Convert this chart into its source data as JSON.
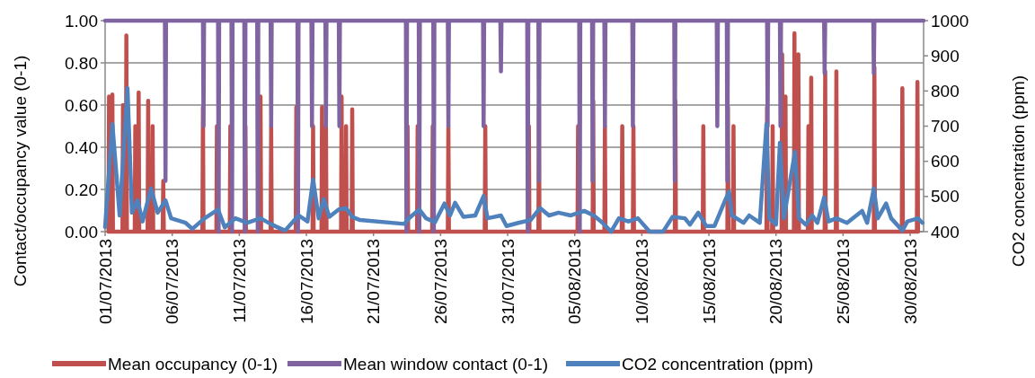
{
  "chart_data": {
    "type": "line",
    "ylabel": "Contact/occupancy value (0-1)",
    "y2label": "CO2 concentration (ppm)",
    "xlim": [
      "2013-07-01",
      "2013-08-31"
    ],
    "xticks": [
      {
        "value": "2013-07-01",
        "label": "01/07/2013"
      },
      {
        "value": "2013-07-06",
        "label": "06/07/2013"
      },
      {
        "value": "2013-07-11",
        "label": "11/07/2013"
      },
      {
        "value": "2013-07-16",
        "label": "16/07/2013"
      },
      {
        "value": "2013-07-21",
        "label": "21/07/2013"
      },
      {
        "value": "2013-07-26",
        "label": "26/07/2013"
      },
      {
        "value": "2013-07-31",
        "label": "31/07/2013"
      },
      {
        "value": "2013-08-05",
        "label": "05/08/2013"
      },
      {
        "value": "2013-08-10",
        "label": "10/08/2013"
      },
      {
        "value": "2013-08-15",
        "label": "15/08/2013"
      },
      {
        "value": "2013-08-20",
        "label": "20/08/2013"
      },
      {
        "value": "2013-08-25",
        "label": "25/08/2013"
      },
      {
        "value": "2013-08-30",
        "label": "30/08/2013"
      }
    ],
    "ylim": [
      0,
      1
    ],
    "yticks": [
      {
        "value": 0,
        "label": "0.00"
      },
      {
        "value": 0.2,
        "label": "0.20"
      },
      {
        "value": 0.4,
        "label": "0.40"
      },
      {
        "value": 0.6,
        "label": "0.60"
      },
      {
        "value": 0.8,
        "label": "0.80"
      },
      {
        "value": 1,
        "label": "1.00"
      }
    ],
    "y2lim": [
      400,
      1000
    ],
    "y2ticks": [
      400,
      500,
      600,
      700,
      800,
      900,
      1000
    ],
    "grid": "y",
    "legend": "bottom",
    "line_style": "solid",
    "marker": "none",
    "series": [
      {
        "name": "Mean occupancy (0-1)",
        "color": "#c0504d",
        "x": [
          "2013-07-01T06:00",
          "2013-07-01T07:00",
          "2013-07-01T08:00",
          "2013-07-01T12:00",
          "2013-07-01T13:00",
          "2013-07-01T14:00",
          "2013-07-02T07:00",
          "2013-07-02T08:00",
          "2013-07-02T09:00",
          "2013-07-02T13:00",
          "2013-07-02T14:00",
          "2013-07-02T15:00",
          "2013-07-03T05:00",
          "2013-07-03T06:00",
          "2013-07-03T07:00",
          "2013-07-03T11:00",
          "2013-07-03T12:00",
          "2013-07-03T13:00",
          "2013-07-04T04:00",
          "2013-07-04T05:00",
          "2013-07-04T06:00",
          "2013-07-04T12:00",
          "2013-07-04T13:00",
          "2013-07-04T14:00",
          "2013-07-05T07:00",
          "2013-07-05T08:00",
          "2013-07-05T09:00",
          "2013-07-08T06:00",
          "2013-07-08T07:00",
          "2013-07-08T08:00",
          "2013-07-09T07:00",
          "2013-07-09T08:00",
          "2013-07-09T09:00",
          "2013-07-10T07:00",
          "2013-07-10T08:00",
          "2013-07-10T09:00",
          "2013-07-11T10:00",
          "2013-07-11T11:00",
          "2013-07-11T12:00",
          "2013-07-12T13:00",
          "2013-07-12T14:00",
          "2013-07-12T15:00",
          "2013-07-13T08:00",
          "2013-07-13T09:00",
          "2013-07-13T10:00",
          "2013-07-15T05:00",
          "2013-07-15T06:00",
          "2013-07-15T07:00",
          "2013-07-16T11:00",
          "2013-07-16T12:00",
          "2013-07-16T13:00",
          "2013-07-17T03:00",
          "2013-07-17T04:00",
          "2013-07-17T05:00",
          "2013-07-17T10:00",
          "2013-07-17T11:00",
          "2013-07-17T12:00",
          "2013-07-18T14:00",
          "2013-07-18T15:00",
          "2013-07-18T16:00",
          "2013-07-18T22:00",
          "2013-07-18T23:00",
          "2013-07-19T00:00",
          "2013-07-19T09:00",
          "2013-07-19T10:00",
          "2013-07-19T11:00",
          "2013-07-23T12:00",
          "2013-07-23T13:00",
          "2013-07-23T14:00",
          "2013-07-24T06:00",
          "2013-07-24T07:00",
          "2013-07-24T08:00",
          "2013-07-25T09:00",
          "2013-07-25T10:00",
          "2013-07-25T11:00",
          "2013-07-26T13:00",
          "2013-07-26T14:00",
          "2013-07-26T15:00",
          "2013-07-29T07:00",
          "2013-07-29T08:00",
          "2013-07-29T09:00",
          "2013-08-01T13:00",
          "2013-08-01T14:00",
          "2013-08-01T15:00",
          "2013-08-02T07:00",
          "2013-08-02T08:00",
          "2013-08-02T09:00",
          "2013-08-05T05:00",
          "2013-08-05T06:00",
          "2013-08-05T07:00",
          "2013-08-06T08:00",
          "2013-08-06T09:00",
          "2013-08-06T10:00",
          "2013-08-07T05:00",
          "2013-08-07T06:00",
          "2013-08-07T07:00",
          "2013-08-08T12:00",
          "2013-08-08T13:00",
          "2013-08-08T14:00",
          "2013-08-09T08:00",
          "2013-08-09T09:00",
          "2013-08-09T10:00",
          "2013-08-12T11:00",
          "2013-08-12T12:00",
          "2013-08-12T13:00",
          "2013-08-14T13:00",
          "2013-08-14T14:00",
          "2013-08-14T15:00",
          "2013-08-16T09:00",
          "2013-08-16T10:00",
          "2013-08-16T11:00",
          "2013-08-16T19:00",
          "2013-08-16T20:00",
          "2013-08-16T21:00",
          "2013-08-19T07:00",
          "2013-08-19T08:00",
          "2013-08-19T09:00",
          "2013-08-19T17:00",
          "2013-08-19T18:00",
          "2013-08-19T19:00",
          "2013-08-20T10:00",
          "2013-08-20T11:00",
          "2013-08-20T12:00",
          "2013-08-20T16:00",
          "2013-08-20T17:00",
          "2013-08-20T18:00",
          "2013-08-21T08:00",
          "2013-08-21T09:00",
          "2013-08-21T10:00",
          "2013-08-21T15:00",
          "2013-08-21T16:00",
          "2013-08-21T17:00",
          "2013-08-22T09:00",
          "2013-08-22T10:00",
          "2013-08-22T11:00",
          "2013-08-22T14:00",
          "2013-08-22T15:00",
          "2013-08-22T16:00",
          "2013-08-23T15:00",
          "2013-08-23T16:00",
          "2013-08-23T17:00",
          "2013-08-24T11:00",
          "2013-08-24T12:00",
          "2013-08-24T13:00",
          "2013-08-27T07:00",
          "2013-08-27T08:00",
          "2013-08-27T09:00",
          "2013-08-29T09:00",
          "2013-08-29T10:00",
          "2013-08-29T11:00",
          "2013-08-30T12:00",
          "2013-08-30T13:00",
          "2013-08-30T14:00"
        ],
        "values": [
          0,
          0.64,
          0,
          0,
          0.65,
          0,
          0,
          0.6,
          0,
          0,
          0.93,
          0,
          0,
          0.5,
          0,
          0,
          0.66,
          0,
          0,
          0.62,
          0,
          0,
          0.5,
          0,
          0,
          0.24,
          0,
          0,
          0.59,
          0,
          0,
          0.5,
          0,
          0,
          0.5,
          0,
          0,
          0.5,
          0,
          0,
          0.64,
          0,
          0,
          0.5,
          0,
          0,
          0.59,
          0,
          0,
          0.5,
          0,
          0,
          0.59,
          0,
          0,
          0.5,
          0,
          0,
          0.64,
          0,
          0,
          0.5,
          0,
          0,
          0.58,
          0,
          0,
          0.5,
          0,
          0,
          0.5,
          0,
          0,
          0.5,
          0,
          0,
          0.5,
          0,
          0,
          0.5,
          0,
          0,
          0.5,
          0,
          0,
          0.59,
          0,
          0,
          0.5,
          0,
          0,
          0.62,
          0,
          0,
          0.5,
          0,
          0,
          0.5,
          0,
          0,
          0.5,
          0,
          0,
          0.62,
          0,
          0,
          0.5,
          0,
          0,
          0.59,
          0,
          0,
          0.5,
          0,
          0,
          0.59,
          0,
          0,
          0.5,
          0,
          0,
          0.84,
          0,
          0,
          0.64,
          0,
          0,
          0.94,
          0,
          0,
          0.84,
          0,
          0,
          0.5,
          0,
          0,
          0.73,
          0,
          0,
          0.76,
          0,
          0,
          0.76,
          0,
          0,
          0.78,
          0,
          0,
          0.68,
          0,
          0,
          0.71,
          0
        ]
      },
      {
        "name": "Mean window contact (0-1)",
        "color": "#8064a2",
        "x": [
          "2013-07-01T00:00",
          "2013-07-05T11:00",
          "2013-07-05T12:00",
          "2013-07-05T13:00",
          "2013-07-08T07:00",
          "2013-07-08T08:00",
          "2013-07-08T09:00",
          "2013-07-09T10:00",
          "2013-07-09T11:00",
          "2013-07-09T12:00",
          "2013-07-10T10:00",
          "2013-07-10T11:00",
          "2013-07-10T12:00",
          "2013-07-11T09:00",
          "2013-07-11T10:00",
          "2013-07-11T11:00",
          "2013-07-12T08:00",
          "2013-07-12T09:00",
          "2013-07-12T10:00",
          "2013-07-13T08:00",
          "2013-07-13T09:00",
          "2013-07-13T10:00",
          "2013-07-15T08:00",
          "2013-07-15T09:00",
          "2013-07-15T10:00",
          "2013-07-16T09:00",
          "2013-07-16T10:00",
          "2013-07-16T11:00",
          "2013-07-17T10:00",
          "2013-07-17T11:00",
          "2013-07-17T12:00",
          "2013-07-18T10:00",
          "2013-07-18T11:00",
          "2013-07-18T12:00",
          "2013-07-23T10:00",
          "2013-07-23T11:00",
          "2013-07-23T12:00",
          "2013-07-24T09:00",
          "2013-07-24T10:00",
          "2013-07-24T11:00",
          "2013-07-25T11:00",
          "2013-07-25T12:00",
          "2013-07-25T13:00",
          "2013-07-26T13:00",
          "2013-07-26T14:00",
          "2013-07-26T15:00",
          "2013-07-29T04:00",
          "2013-07-29T05:00",
          "2013-07-29T06:00",
          "2013-07-30T11:00",
          "2013-07-30T12:00",
          "2013-07-30T13:00",
          "2013-08-01T11:00",
          "2013-08-01T12:00",
          "2013-08-01T13:00",
          "2013-08-02T07:00",
          "2013-08-02T08:00",
          "2013-08-02T09:00",
          "2013-08-05T08:00",
          "2013-08-05T09:00",
          "2013-08-05T10:00",
          "2013-08-06T07:00",
          "2013-08-06T08:00",
          "2013-08-06T09:00",
          "2013-08-07T05:00",
          "2013-08-07T06:00",
          "2013-08-07T07:00",
          "2013-08-09T07:00",
          "2013-08-09T08:00",
          "2013-08-09T09:00",
          "2013-08-12T10:00",
          "2013-08-12T11:00",
          "2013-08-12T12:00",
          "2013-08-15T14:00",
          "2013-08-15T15:00",
          "2013-08-15T16:00",
          "2013-08-16T08:00",
          "2013-08-16T09:00",
          "2013-08-16T10:00",
          "2013-08-19T08:00",
          "2013-08-19T09:00",
          "2013-08-19T10:00",
          "2013-08-20T07:00",
          "2013-08-20T08:00",
          "2013-08-20T09:00",
          "2013-08-23T14:00",
          "2013-08-23T15:00",
          "2013-08-23T16:00",
          "2013-08-27T06:00",
          "2013-08-27T07:00",
          "2013-08-27T08:00",
          "2013-08-31T00:00"
        ],
        "values": [
          1,
          1,
          0.24,
          1,
          1,
          0.5,
          1,
          1,
          0,
          1,
          1,
          0,
          1,
          1,
          0,
          1,
          1,
          0,
          1,
          1,
          0.5,
          1,
          1,
          0,
          1,
          1,
          0.5,
          1,
          1,
          0.5,
          1,
          1,
          0.5,
          1,
          1,
          0,
          1,
          1,
          0,
          1,
          1,
          0,
          1,
          1,
          0.5,
          1,
          1,
          0.5,
          1,
          1,
          0.76,
          1,
          1,
          0,
          1,
          1,
          0.24,
          1,
          1,
          0,
          1,
          1,
          0.24,
          1,
          1,
          0.5,
          1,
          1,
          0.5,
          1,
          1,
          0.24,
          1,
          1,
          0.5,
          1,
          1,
          0.24,
          1,
          1,
          0.5,
          1,
          1,
          0.5,
          1,
          1,
          0.75,
          1,
          1,
          0.75,
          1,
          1
        ]
      },
      {
        "name": "CO2 concentration (ppm)",
        "color": "#4f81bd",
        "axis": "y2",
        "x": [
          "2013-07-01T00:00",
          "2013-07-01T13:00",
          "2013-07-02T02:00",
          "2013-07-02T16:00",
          "2013-07-03T00:00",
          "2013-07-03T10:00",
          "2013-07-03T19:00",
          "2013-07-04T10:00",
          "2013-07-04T22:00",
          "2013-07-05T12:00",
          "2013-07-05T22:00",
          "2013-07-07T00:00",
          "2013-07-07T12:00",
          "2013-07-08T10:00",
          "2013-07-09T10:00",
          "2013-07-09T22:00",
          "2013-07-10T17:00",
          "2013-07-11T14:00",
          "2013-07-12T14:00",
          "2013-07-13T10:00",
          "2013-07-14T10:00",
          "2013-07-15T10:00",
          "2013-07-16T02:00",
          "2013-07-16T12:00",
          "2013-07-16T22:00",
          "2013-07-17T07:00",
          "2013-07-17T17:00",
          "2013-07-18T10:00",
          "2013-07-18T23:00",
          "2013-07-19T10:00",
          "2013-07-20T00:00",
          "2013-07-23T07:00",
          "2013-07-23T17:00",
          "2013-07-24T10:00",
          "2013-07-24T22:00",
          "2013-07-25T14:00",
          "2013-07-26T07:00",
          "2013-07-26T17:00",
          "2013-07-27T02:00",
          "2013-07-27T17:00",
          "2013-07-28T14:00",
          "2013-07-29T05:00",
          "2013-07-29T12:00",
          "2013-07-30T12:00",
          "2013-07-30T22:00",
          "2013-07-31T19:00",
          "2013-08-01T17:00",
          "2013-08-02T10:00",
          "2013-08-03T02:00",
          "2013-08-03T19:00",
          "2013-08-04T17:00",
          "2013-08-05T17:00",
          "2013-08-06T10:00",
          "2013-08-07T02:00",
          "2013-08-07T17:00",
          "2013-08-08T07:00",
          "2013-08-09T00:00",
          "2013-08-09T17:00",
          "2013-08-10T14:00",
          "2013-08-11T14:00",
          "2013-08-12T07:00",
          "2013-08-13T05:00",
          "2013-08-13T14:00",
          "2013-08-14T05:00",
          "2013-08-14T19:00",
          "2013-08-15T10:00",
          "2013-08-16T05:00",
          "2013-08-16T12:00",
          "2013-08-16T17:00",
          "2013-08-17T14:00",
          "2013-08-18T00:00",
          "2013-08-18T19:00",
          "2013-08-19T07:00",
          "2013-08-19T12:00",
          "2013-08-20T00:00",
          "2013-08-20T07:00",
          "2013-08-20T14:00",
          "2013-08-21T10:00",
          "2013-08-21T17:00",
          "2013-08-22T05:00",
          "2013-08-22T17:00",
          "2013-08-23T02:00",
          "2013-08-23T14:00",
          "2013-08-23T22:00",
          "2013-08-24T12:00",
          "2013-08-25T07:00",
          "2013-08-26T10:00",
          "2013-08-26T19:00",
          "2013-08-27T07:00",
          "2013-08-27T14:00",
          "2013-08-28T05:00",
          "2013-08-28T14:00",
          "2013-08-29T10:00",
          "2013-08-29T19:00",
          "2013-08-30T14:00",
          "2013-08-30T22:00"
        ],
        "values": [
          413,
          706,
          446,
          808,
          454,
          489,
          429,
          523,
          454,
          489,
          438,
          425,
          408,
          438,
          463,
          412,
          438,
          425,
          438,
          420,
          403,
          446,
          429,
          548,
          438,
          493,
          442,
          463,
          467,
          442,
          433,
          422,
          440,
          463,
          438,
          427,
          480,
          446,
          482,
          442,
          446,
          501,
          438,
          446,
          416,
          425,
          433,
          467,
          446,
          454,
          446,
          459,
          446,
          425,
          400,
          438,
          429,
          438,
          400,
          400,
          442,
          438,
          420,
          454,
          416,
          416,
          489,
          514,
          446,
          425,
          446,
          425,
          706,
          438,
          420,
          653,
          438,
          627,
          438,
          420,
          446,
          425,
          497,
          429,
          438,
          425,
          459,
          425,
          523,
          438,
          480,
          438,
          403,
          429,
          438,
          425
        ]
      }
    ]
  }
}
